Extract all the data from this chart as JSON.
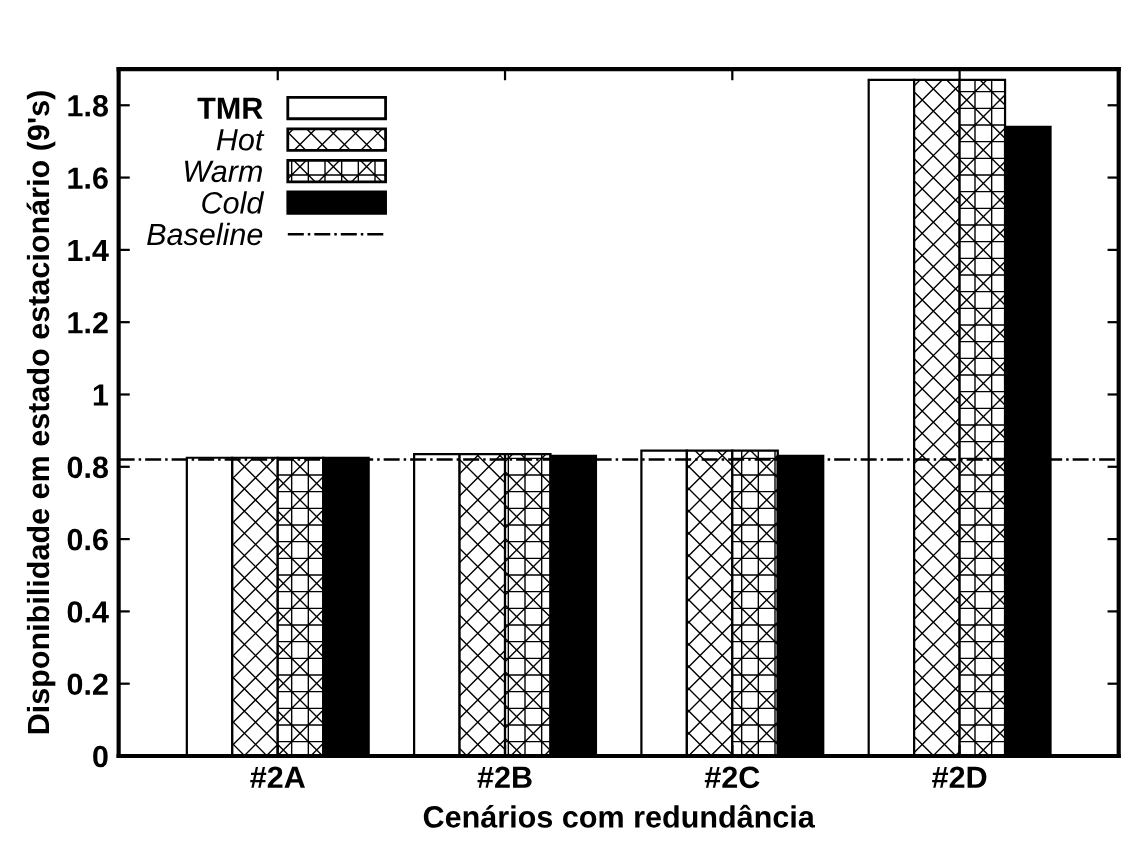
{
  "chart_data": {
    "type": "bar",
    "xlabel": "Cenários com redundância",
    "ylabel": "Disponibilidade em estado estacionário (9's)",
    "categories": [
      "#2A",
      "#2B",
      "#2C",
      "#2D"
    ],
    "series": [
      {
        "name": "TMR",
        "color": "#ffffff",
        "values": [
          0.825,
          0.835,
          0.845,
          1.87
        ]
      },
      {
        "name": "Hot",
        "color": "#000000",
        "values": [
          0.825,
          0.835,
          0.845,
          1.87
        ]
      },
      {
        "name": "Warm",
        "color": "#000000",
        "values": [
          0.825,
          0.835,
          0.845,
          1.87
        ]
      },
      {
        "name": "Cold",
        "color": "#000000",
        "values": [
          0.825,
          0.83,
          0.83,
          1.74
        ]
      }
    ],
    "ref_lines": [
      {
        "axis": "y",
        "value": 0.82,
        "label": "Baseline",
        "color": "#000000",
        "line_style": "dashdot"
      }
    ],
    "ylim": [
      0,
      1.9
    ],
    "yticks": [
      0,
      0.2,
      0.4,
      0.6,
      0.8,
      1,
      1.2,
      1.4,
      1.6,
      1.8
    ],
    "grid": false,
    "legend": "top left"
  }
}
